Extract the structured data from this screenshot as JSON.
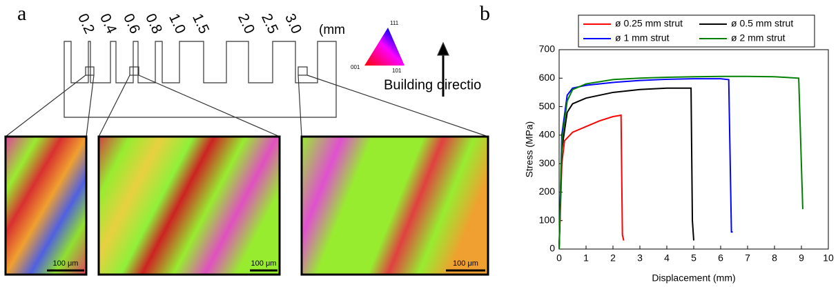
{
  "panel_a": {
    "label": "a",
    "widths": [
      "0.2",
      "0.4",
      "0.6",
      "0.8",
      "1.0",
      "1.5",
      "2.0",
      "2.5",
      "3.0"
    ],
    "unit": "(mm",
    "ipf": {
      "top": "111",
      "left": "001",
      "right": "101"
    },
    "building_direction": "Building directio",
    "scale_bars": [
      "100 μm",
      "100 μm",
      "100 μm"
    ]
  },
  "chart_data": {
    "type": "line",
    "panel_label": "b",
    "x_label": "Displacement (mm)",
    "y_label": "Stress (MPa)",
    "xlim": [
      0,
      10
    ],
    "ylim": [
      0,
      700
    ],
    "xticks": [
      0,
      1,
      2,
      3,
      4,
      5,
      6,
      7,
      8,
      9,
      10
    ],
    "yticks": [
      0,
      100,
      200,
      300,
      400,
      500,
      600,
      700
    ],
    "series": [
      {
        "name": "ø 0.25 mm strut",
        "color": "#ff0000",
        "x": [
          0,
          0.1,
          0.2,
          0.5,
          1,
          1.5,
          2,
          2.3,
          2.35,
          2.4
        ],
        "values": [
          0,
          300,
          380,
          410,
          430,
          450,
          465,
          470,
          50,
          30
        ]
      },
      {
        "name": "ø 0.5 mm strut",
        "color": "#000000",
        "x": [
          0,
          0.1,
          0.3,
          0.5,
          1,
          2,
          3,
          4,
          4.9,
          4.95,
          5.0
        ],
        "values": [
          0,
          350,
          480,
          510,
          530,
          550,
          560,
          565,
          565,
          100,
          30
        ]
      },
      {
        "name": "ø 1 mm strut",
        "color": "#0000ff",
        "x": [
          0,
          0.1,
          0.3,
          0.5,
          1,
          2,
          3,
          4,
          5,
          6,
          6.3,
          6.4,
          6.45
        ],
        "values": [
          0,
          400,
          540,
          565,
          575,
          585,
          592,
          596,
          598,
          598,
          595,
          60,
          60
        ]
      },
      {
        "name": "ø 2 mm strut",
        "color": "#008000",
        "x": [
          0,
          0.1,
          0.3,
          0.5,
          1,
          2,
          3,
          4,
          5,
          6,
          7,
          8,
          8.9,
          9.05
        ],
        "values": [
          0,
          380,
          520,
          560,
          580,
          595,
          600,
          603,
          605,
          606,
          606,
          605,
          600,
          140
        ]
      }
    ]
  }
}
